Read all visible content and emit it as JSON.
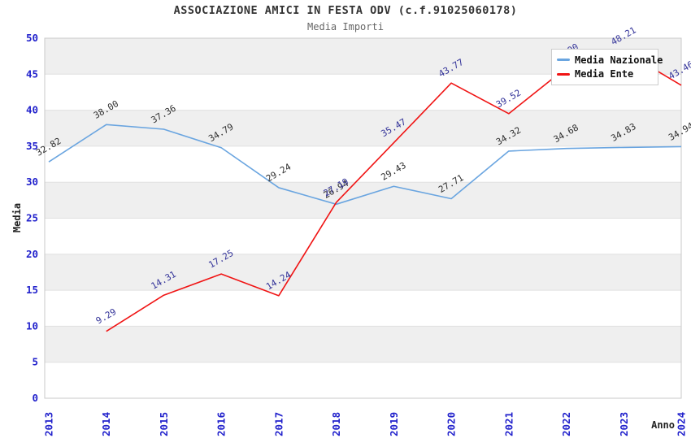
{
  "header": {
    "title": "ASSOCIAZIONE AMICI IN FESTA ODV (c.f.91025060178)",
    "subtitle": "Media Importi"
  },
  "legend": {
    "items": [
      {
        "label": "Media Nazionale",
        "color": "#6aa5e0"
      },
      {
        "label": "Media Ente",
        "color": "#f01414"
      }
    ]
  },
  "colors": {
    "axis_tick_blue": "#2222cc",
    "nazionale_line": "#6aa5e0",
    "ente_line": "#f01414",
    "nazionale_label": "#303030",
    "ente_label": "#333399",
    "band_gray": "#efefef",
    "grid_line": "#e0e0e0",
    "plot_border": "#c8c8c8"
  },
  "chart_data": {
    "type": "line",
    "title": "ASSOCIAZIONE AMICI IN FESTA ODV (c.f.91025060178)",
    "subtitle": "Media Importi",
    "xlabel": "Anno",
    "ylabel": "Media",
    "x_categories": [
      "2013",
      "2014",
      "2015",
      "2016",
      "2017",
      "2018",
      "2019",
      "2020",
      "2021",
      "2022",
      "2023",
      "2024"
    ],
    "y_ticks": [
      0,
      5,
      10,
      15,
      20,
      25,
      30,
      35,
      40,
      45,
      50
    ],
    "ylim": [
      0,
      50
    ],
    "grid": "horizontal-bands-alternating",
    "legend_position": "top-right",
    "series": [
      {
        "name": "Media Nazionale",
        "color": "#6aa5e0",
        "label_color": "#303030",
        "values": [
          32.82,
          38.0,
          37.36,
          34.79,
          29.24,
          26.94,
          29.43,
          27.71,
          34.32,
          34.68,
          34.83,
          34.94
        ]
      },
      {
        "name": "Media Ente",
        "color": "#f01414",
        "label_color": "#333399",
        "values": [
          null,
          9.29,
          14.31,
          17.25,
          14.24,
          27.19,
          35.47,
          43.77,
          39.52,
          45.9,
          48.21,
          43.46
        ]
      }
    ]
  }
}
